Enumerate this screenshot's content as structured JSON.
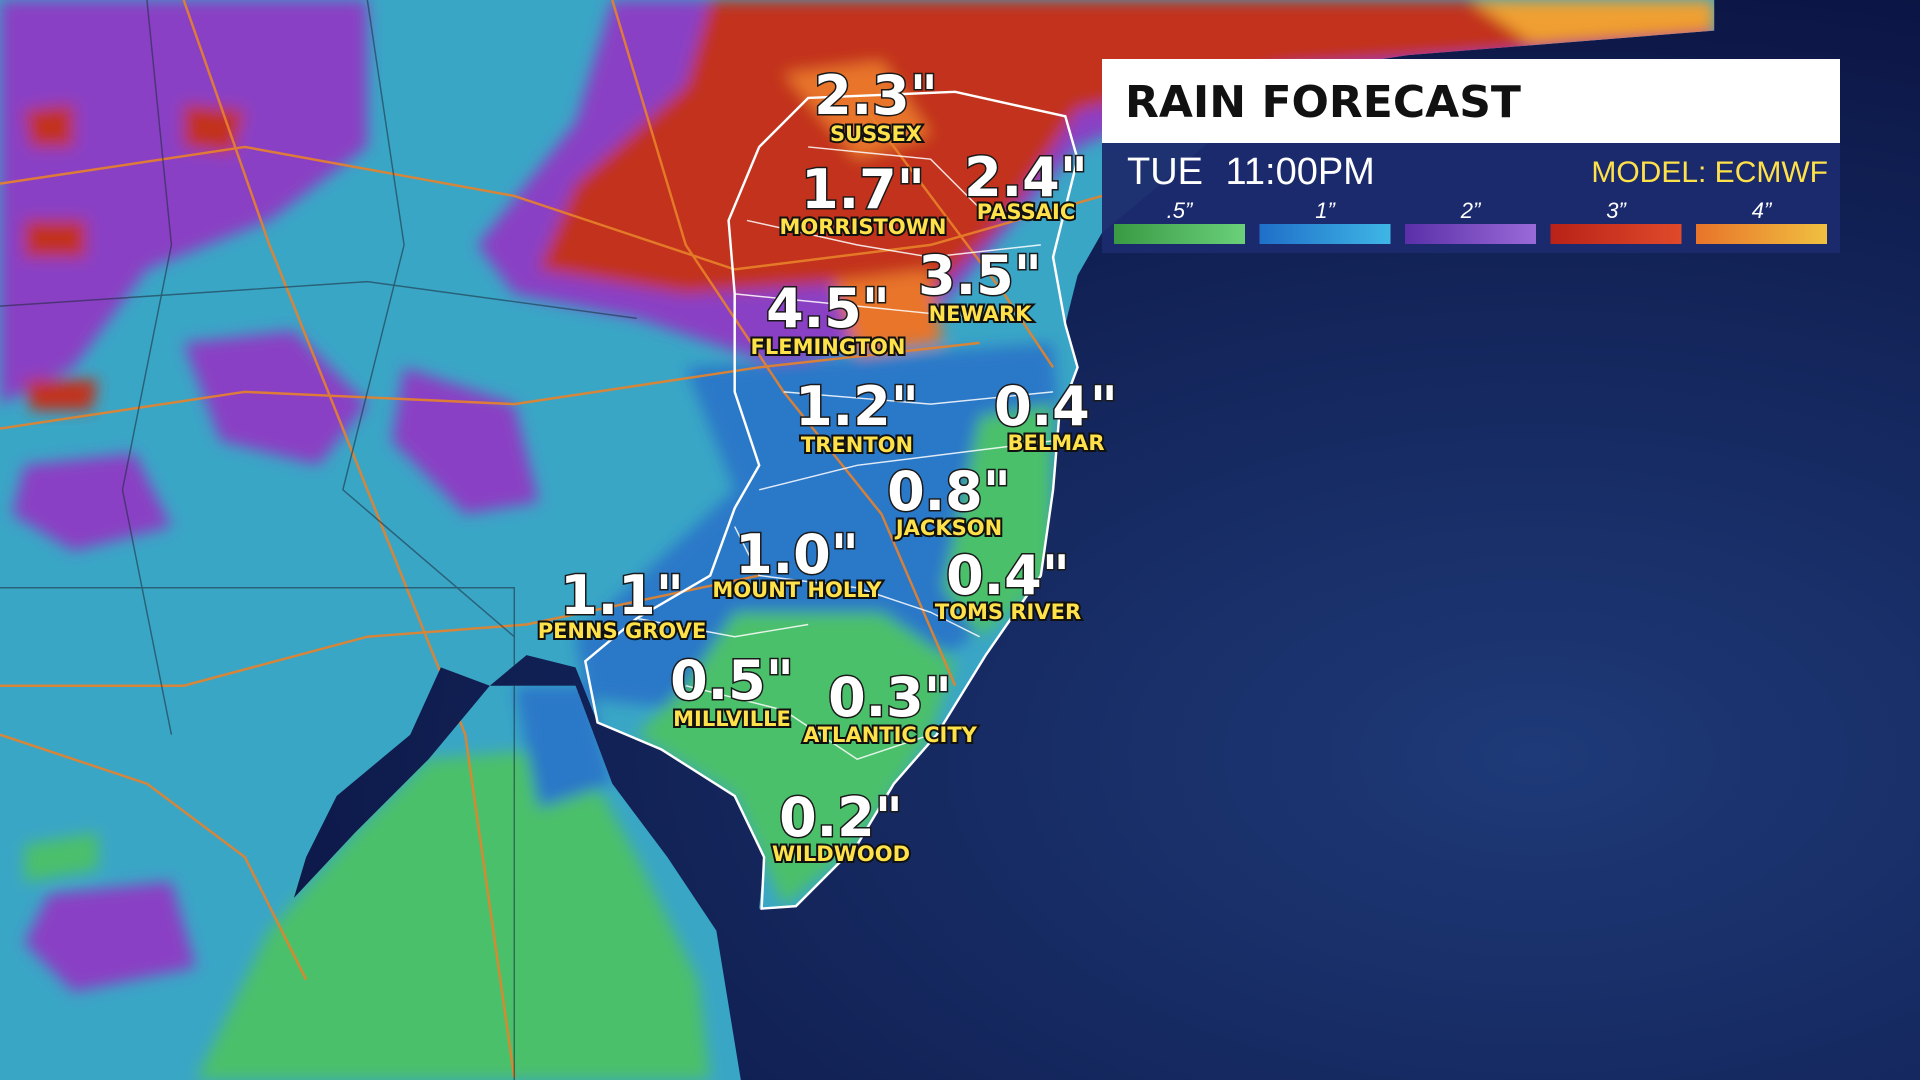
{
  "header": {
    "title": "RAIN FORECAST",
    "time": "TUE 11:00PM",
    "model": "MODEL: ECMWF"
  },
  "legend": [
    ".5”",
    "1”",
    "2”",
    "3”",
    "4”"
  ],
  "locations": [
    {
      "name": "SUSSEX",
      "amount": "2.3\""
    },
    {
      "name": "MORRISTOWN",
      "amount": "1.7\""
    },
    {
      "name": "PASSAIC",
      "amount": "2.4\""
    },
    {
      "name": "NEWARK",
      "amount": "3.5\""
    },
    {
      "name": "FLEMINGTON",
      "amount": "4.5\""
    },
    {
      "name": "TRENTON",
      "amount": "1.2\""
    },
    {
      "name": "BELMAR",
      "amount": "0.4\""
    },
    {
      "name": "JACKSON",
      "amount": "0.8\""
    },
    {
      "name": "MOUNT HOLLY",
      "amount": "1.0\""
    },
    {
      "name": "TOMS RIVER",
      "amount": "0.4\""
    },
    {
      "name": "PENNS GROVE",
      "amount": "1.1\""
    },
    {
      "name": "MILLVILLE",
      "amount": "0.5\""
    },
    {
      "name": "ATLANTIC CITY",
      "amount": "0.3\""
    },
    {
      "name": "WILDWOOD",
      "amount": "0.2\""
    }
  ]
}
